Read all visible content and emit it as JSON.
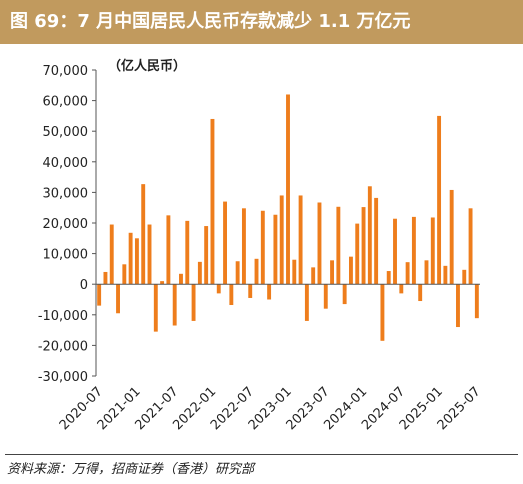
{
  "title": "图 69：7 月中国居民人民币存款减少 1.1 万亿元",
  "source": "资料来源：万得，招商证券（香港）研究部",
  "colors": {
    "bar": "#ee7d1c",
    "title_bg": "#c19a5e"
  },
  "chart_data": {
    "type": "bar",
    "unit_label": "（亿人民币）",
    "ylim": [
      -30000,
      70000
    ],
    "yticks": [
      "70,000",
      "60,000",
      "50,000",
      "40,000",
      "30,000",
      "20,000",
      "10,000",
      "0",
      "-10,000",
      "-20,000",
      "-30,000"
    ],
    "ytick_values": [
      70000,
      60000,
      50000,
      40000,
      30000,
      20000,
      10000,
      0,
      -10000,
      -20000,
      -30000
    ],
    "xtick_labels": [
      "2020-07",
      "2021-01",
      "2021-07",
      "2022-01",
      "2022-07",
      "2023-01",
      "2023-07",
      "2024-01",
      "2024-07",
      "2025-01",
      "2025-07"
    ],
    "xtick_indices": [
      0,
      6,
      12,
      18,
      24,
      30,
      36,
      42,
      48,
      54,
      60
    ],
    "grid": false,
    "legend": "none",
    "categories": [
      "2020-07",
      "2020-08",
      "2020-09",
      "2020-10",
      "2020-11",
      "2020-12",
      "2021-01",
      "2021-02",
      "2021-03",
      "2021-04",
      "2021-05",
      "2021-06",
      "2021-07",
      "2021-08",
      "2021-09",
      "2021-10",
      "2021-11",
      "2021-12",
      "2022-01",
      "2022-02",
      "2022-03",
      "2022-04",
      "2022-05",
      "2022-06",
      "2022-07",
      "2022-08",
      "2022-09",
      "2022-10",
      "2022-11",
      "2022-12",
      "2023-01",
      "2023-02",
      "2023-03",
      "2023-04",
      "2023-05",
      "2023-06",
      "2023-07",
      "2023-08",
      "2023-09",
      "2023-10",
      "2023-11",
      "2023-12",
      "2024-01",
      "2024-02",
      "2024-03",
      "2024-04",
      "2024-05",
      "2024-06",
      "2024-07",
      "2024-08",
      "2024-09",
      "2024-10",
      "2024-11",
      "2024-12",
      "2025-01",
      "2025-02",
      "2025-03",
      "2025-04",
      "2025-05",
      "2025-06",
      "2025-07"
    ],
    "values": [
      -7000,
      4000,
      19500,
      -9500,
      6500,
      16800,
      15000,
      32700,
      19500,
      -15500,
      1000,
      22500,
      -13500,
      3400,
      20700,
      -12000,
      7300,
      19000,
      54000,
      -3000,
      27000,
      -6800,
      7500,
      24800,
      -4500,
      8300,
      24000,
      -5000,
      22700,
      29000,
      62000,
      8000,
      29000,
      -12000,
      5500,
      26700,
      -8000,
      7800,
      25300,
      -6500,
      9000,
      19800,
      25200,
      32000,
      28200,
      -18500,
      4300,
      21400,
      -3000,
      7200,
      22000,
      -5500,
      7800,
      21800,
      55000,
      6000,
      30800,
      -14000,
      4700,
      24800,
      -11100
    ]
  }
}
